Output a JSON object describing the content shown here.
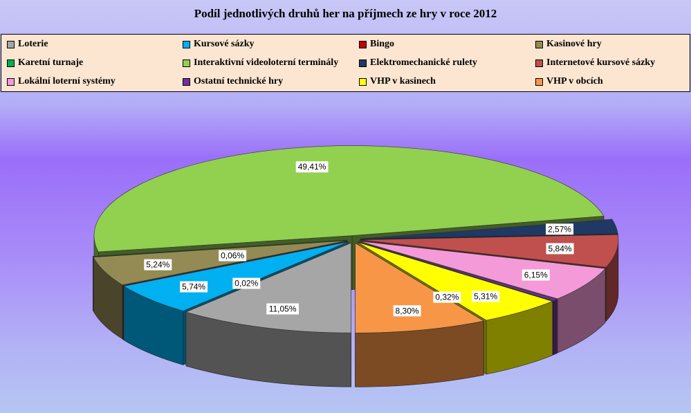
{
  "chart_data": {
    "type": "pie",
    "title": "Podíl jednotlivých druhů her na příjmech ze hry v roce 2012",
    "legend_position": "top",
    "style": "3d-exploded",
    "slices": [
      {
        "name": "Loterie",
        "value": 11.05,
        "label": "11,05%",
        "color": "#a6a6a6"
      },
      {
        "name": "Kursové sázky",
        "value": 5.74,
        "label": "5,74%",
        "color": "#00b0f0"
      },
      {
        "name": "Bingo",
        "value": 0.02,
        "label": "0,02%",
        "color": "#c00000"
      },
      {
        "name": "Kasinové hry",
        "value": 5.24,
        "label": "5,24%",
        "color": "#948a54"
      },
      {
        "name": "Karetní turnaje",
        "value": 0.06,
        "label": "0,06%",
        "color": "#00b050"
      },
      {
        "name": "Interaktivní videoloterní terminály",
        "value": 49.41,
        "label": "49,41%",
        "color": "#92d050"
      },
      {
        "name": "Elektromechanické rulety",
        "value": 2.57,
        "label": "2,57%",
        "color": "#1f3864"
      },
      {
        "name": "Internetové kursové sázky",
        "value": 5.84,
        "label": "5,84%",
        "color": "#c0504d"
      },
      {
        "name": "Lokální loterní systémy",
        "value": 6.15,
        "label": "6,15%",
        "color": "#f49ad8"
      },
      {
        "name": "Ostatní technické hry",
        "value": 0.32,
        "label": "0,32%",
        "color": "#7030a0"
      },
      {
        "name": "VHP v kasinech",
        "value": 5.31,
        "label": "5,31%",
        "color": "#ffff00"
      },
      {
        "name": "VHP v obcích",
        "value": 8.3,
        "label": "8,30%",
        "color": "#f79646"
      }
    ]
  }
}
